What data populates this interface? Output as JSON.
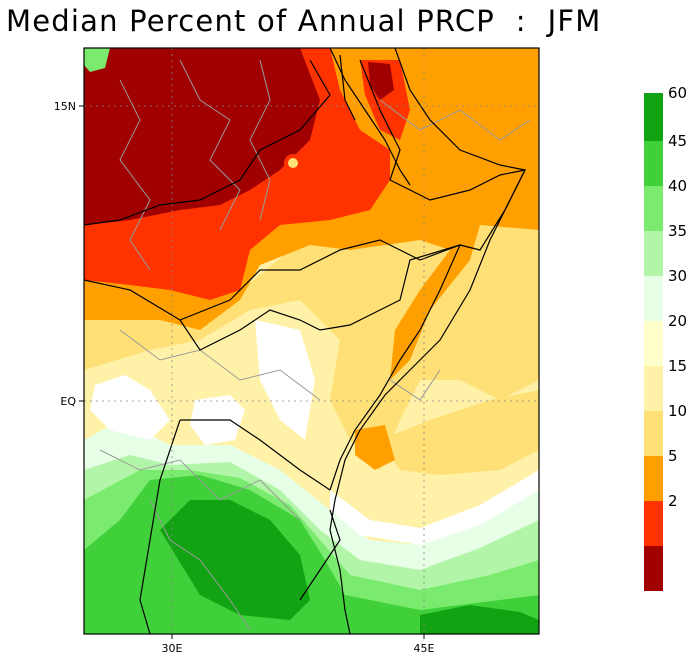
{
  "title": "Median Percent of Annual PRCP  :  JFM",
  "axes": {
    "lat_labels": [
      "15N",
      "EQ"
    ],
    "lon_labels": [
      "30E",
      "45E"
    ]
  },
  "colorbar": {
    "levels": [
      {
        "label": "",
        "color": "#a00000"
      },
      {
        "label": "2",
        "color": "#ff3300"
      },
      {
        "label": "5",
        "color": "#ffa000"
      },
      {
        "label": "10",
        "color": "#ffe076"
      },
      {
        "label": "15",
        "color": "#fff2a8"
      },
      {
        "label": "20",
        "color": "#ffffcc"
      },
      {
        "label": "30",
        "color": "#e6ffe6"
      },
      {
        "label": "35",
        "color": "#b3f5a8"
      },
      {
        "label": "40",
        "color": "#7aeb6e"
      },
      {
        "label": "45",
        "color": "#3fd03a"
      },
      {
        "label": "60",
        "color": "#12a312"
      }
    ]
  }
}
